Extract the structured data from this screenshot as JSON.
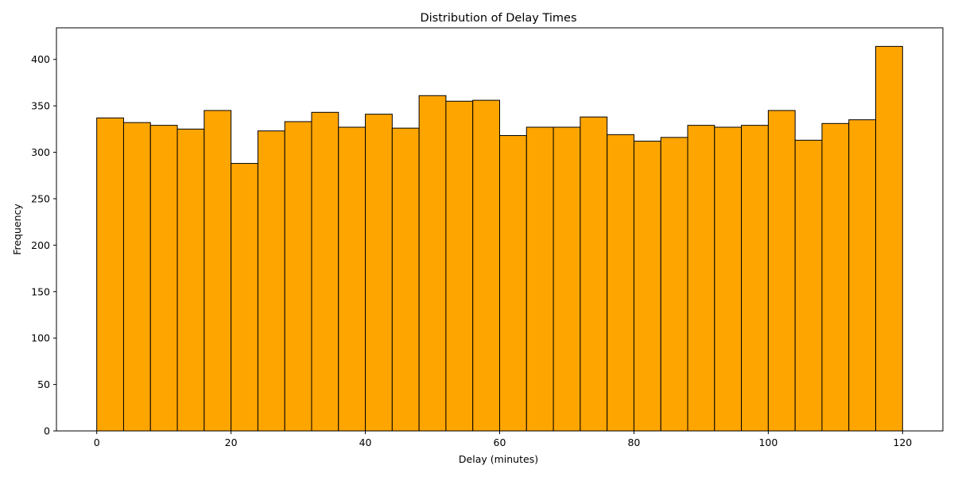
{
  "chart_data": {
    "type": "bar",
    "title": "Distribution of Delay Times",
    "xlabel": "Delay (minutes)",
    "ylabel": "Frequency",
    "xlim": [
      -6,
      126
    ],
    "ylim": [
      0,
      434
    ],
    "bin_edges": [
      0,
      4,
      8,
      12,
      16,
      20,
      24,
      28,
      32,
      36,
      40,
      44,
      48,
      52,
      56,
      60,
      64,
      68,
      72,
      76,
      80,
      84,
      88,
      92,
      96,
      100,
      104,
      108,
      112,
      116,
      120
    ],
    "values": [
      337,
      332,
      329,
      325,
      345,
      288,
      323,
      333,
      343,
      327,
      341,
      326,
      361,
      355,
      356,
      318,
      327,
      327,
      338,
      319,
      312,
      316,
      329,
      327,
      329,
      345,
      313,
      331,
      335,
      414
    ],
    "xticks": [
      "0",
      "20",
      "40",
      "60",
      "80",
      "100",
      "120"
    ],
    "yticks": [
      "0",
      "50",
      "100",
      "150",
      "200",
      "250",
      "300",
      "350",
      "400"
    ],
    "bar_color": "#ffa500",
    "edge_color": "#000000",
    "grid": false
  }
}
